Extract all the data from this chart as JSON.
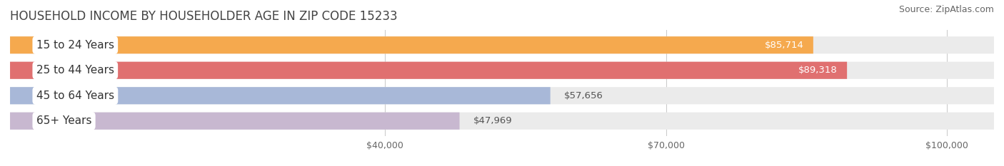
{
  "title": "HOUSEHOLD INCOME BY HOUSEHOLDER AGE IN ZIP CODE 15233",
  "source": "Source: ZipAtlas.com",
  "categories": [
    "15 to 24 Years",
    "25 to 44 Years",
    "45 to 64 Years",
    "65+ Years"
  ],
  "values": [
    85714,
    89318,
    57656,
    47969
  ],
  "bar_colors": [
    "#F5A94E",
    "#E07070",
    "#A8B8D8",
    "#C8B8D0"
  ],
  "bar_labels": [
    "$85,714",
    "$89,318",
    "$57,656",
    "$47,969"
  ],
  "label_inside": [
    true,
    true,
    false,
    false
  ],
  "xlim": [
    0,
    105000
  ],
  "xticks": [
    40000,
    70000,
    100000
  ],
  "xticklabels": [
    "$40,000",
    "$70,000",
    "$100,000"
  ],
  "background_color": "#ffffff",
  "bar_bg_color": "#ebebeb",
  "title_fontsize": 12,
  "source_fontsize": 9,
  "label_fontsize": 9.5,
  "tick_fontsize": 9,
  "cat_label_fontsize": 11
}
